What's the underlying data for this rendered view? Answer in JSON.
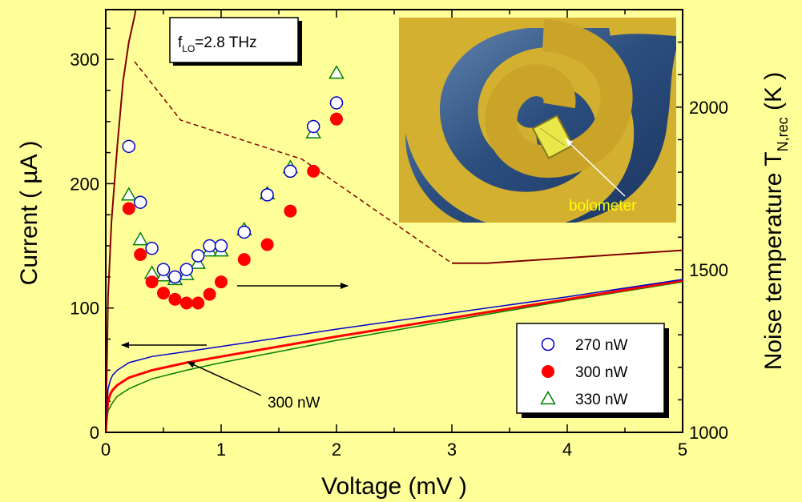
{
  "chart_data": {
    "type": "scatter",
    "xlabel": "Voltage (mV )",
    "ylabel": "Current ( µA )",
    "y2label": "Noise temperature T",
    "y2label_sub": "N,rec",
    "y2label_unit": " (K )",
    "xlim": [
      0,
      5
    ],
    "ylim": [
      0,
      340
    ],
    "y2lim": [
      1000,
      2300
    ],
    "x_ticks": [
      "0",
      "1",
      "2",
      "3",
      "4",
      "5"
    ],
    "y_ticks": [
      "0",
      "100",
      "200",
      "300"
    ],
    "y2_ticks": [
      "1000",
      "1500",
      "2000"
    ],
    "annotation_lo": {
      "prefix": "f",
      "sub": "LO",
      "suffix": "=2.8 THz"
    },
    "annotation_curve": "300 nW",
    "inset_label": "bolometer",
    "colors": {
      "background": "#FFFF99",
      "s270": "#0000CC",
      "s300": "#FF0000",
      "s330": "#008000",
      "noise": "#800000",
      "inset_gold": "#D4B030",
      "inset_blue": "#2E5A8C"
    },
    "series": [
      {
        "name": "270 nW",
        "marker": "circle-open",
        "color": "#0000CC",
        "x": [
          0.2,
          0.3,
          0.4,
          0.5,
          0.6,
          0.7,
          0.8,
          0.9,
          1.0,
          1.2,
          1.4,
          1.6,
          1.8,
          2.0
        ],
        "y": [
          230,
          185,
          148,
          131,
          125,
          131,
          142,
          150,
          150,
          161,
          191,
          210,
          246,
          265
        ]
      },
      {
        "name": "300 nW",
        "marker": "circle-filled",
        "color": "#FF0000",
        "x": [
          0.2,
          0.3,
          0.4,
          0.5,
          0.6,
          0.7,
          0.8,
          0.9,
          1.0,
          1.2,
          1.4,
          1.6,
          1.8,
          2.0
        ],
        "y": [
          180,
          143,
          121,
          112,
          107,
          104,
          104,
          111,
          121,
          139,
          151,
          178,
          210,
          252
        ]
      },
      {
        "name": "330 nW",
        "marker": "triangle-open",
        "color": "#008000",
        "x": [
          0.2,
          0.3,
          0.4,
          0.5,
          0.6,
          0.7,
          0.8,
          0.9,
          1.0,
          1.2,
          1.4,
          1.6,
          1.8,
          2.0
        ],
        "y": [
          191,
          155,
          128,
          126,
          123,
          127,
          136,
          146,
          146,
          163,
          192,
          213,
          241,
          289
        ]
      }
    ],
    "iv_curves": [
      {
        "name": "270 nW",
        "color": "#0000CC",
        "x": [
          0,
          0.01,
          0.02,
          0.04,
          0.06,
          0.1,
          0.2,
          0.4,
          0.7,
          1.0,
          1.5,
          2.0,
          3.0,
          4.0,
          5.0
        ],
        "y": [
          0,
          20,
          35,
          42,
          46,
          50,
          56,
          61,
          65,
          69,
          76,
          83,
          96,
          109,
          123
        ]
      },
      {
        "name": "300 nW",
        "color": "#FF0000",
        "x": [
          0,
          0.01,
          0.02,
          0.04,
          0.06,
          0.1,
          0.2,
          0.4,
          0.7,
          1.0,
          1.5,
          2.0,
          3.0,
          4.0,
          5.0
        ],
        "y": [
          0,
          15,
          25,
          31,
          34,
          38,
          44,
          50,
          56,
          61,
          69,
          77,
          92,
          107,
          122
        ]
      },
      {
        "name": "330 nW",
        "color": "#008000",
        "x": [
          0,
          0.01,
          0.02,
          0.04,
          0.06,
          0.1,
          0.2,
          0.4,
          0.7,
          1.0,
          1.5,
          2.0,
          3.0,
          4.0,
          5.0
        ],
        "y": [
          0,
          10,
          17,
          21,
          24,
          29,
          35,
          43,
          50,
          56,
          65,
          74,
          90,
          106,
          121
        ]
      }
    ],
    "noise_solid_1": {
      "x": [
        0,
        0.02,
        0.05,
        0.1,
        0.15,
        0.2,
        0.25,
        0.3,
        0.35
      ],
      "y": [
        1000,
        1420,
        1650,
        1880,
        2080,
        2200,
        2280,
        2390,
        2500
      ]
    },
    "noise_dashed": {
      "x": [
        0.25,
        0.65,
        1.7,
        3.0
      ],
      "y": [
        2140,
        1960,
        1840,
        1520
      ]
    },
    "noise_solid_2": {
      "x": [
        3.0,
        3.3,
        5.0
      ],
      "y": [
        1520,
        1520,
        1560
      ]
    }
  }
}
